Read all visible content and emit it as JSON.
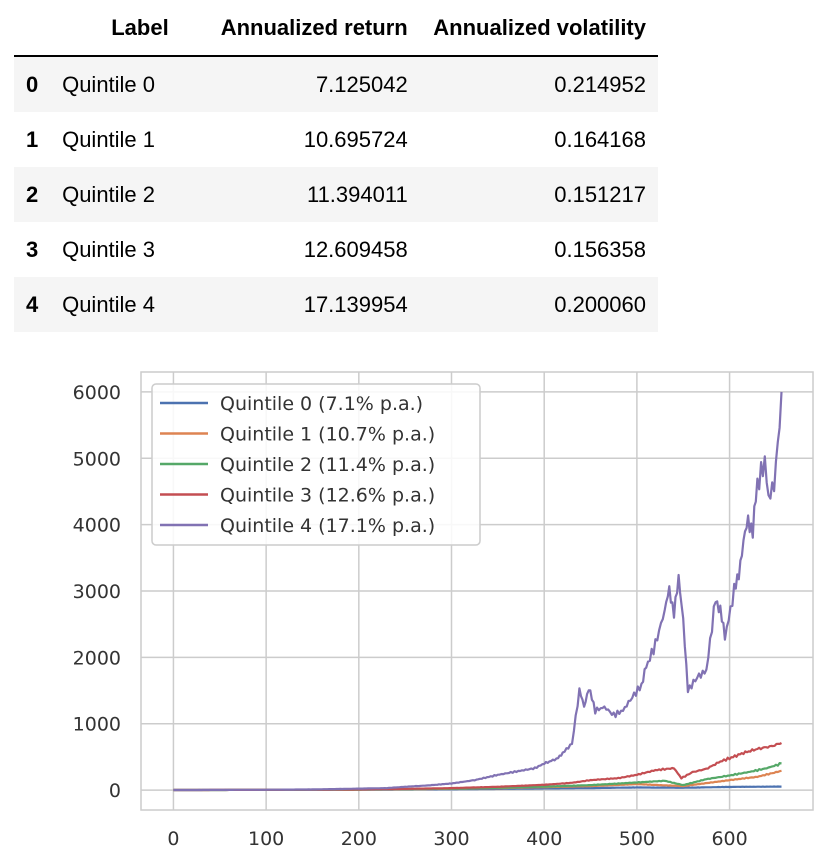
{
  "table": {
    "columns": [
      "Label",
      "Annualized return",
      "Annualized volatility"
    ],
    "rows": [
      {
        "index": "0",
        "label": "Quintile 0",
        "return": "7.125042",
        "volatility": "0.214952"
      },
      {
        "index": "1",
        "label": "Quintile 1",
        "return": "10.695724",
        "volatility": "0.164168"
      },
      {
        "index": "2",
        "label": "Quintile 2",
        "return": "11.394011",
        "volatility": "0.151217"
      },
      {
        "index": "3",
        "label": "Quintile 3",
        "return": "12.609458",
        "volatility": "0.156358"
      },
      {
        "index": "4",
        "label": "Quintile 4",
        "return": "17.139954",
        "volatility": "0.200060"
      }
    ]
  },
  "chart_data": {
    "type": "line",
    "title": "",
    "xlabel": "",
    "ylabel": "",
    "xlim": [
      -35,
      690
    ],
    "ylim": [
      -300,
      6300
    ],
    "xticks": [
      0,
      100,
      200,
      300,
      400,
      500,
      600
    ],
    "yticks": [
      0,
      1000,
      2000,
      3000,
      4000,
      5000,
      6000
    ],
    "grid": true,
    "legend": "top-left",
    "series": [
      {
        "name": "Quintile 0 (7.1% p.a.)",
        "color": "#4c72b0",
        "points": [
          [
            0,
            1
          ],
          [
            100,
            3
          ],
          [
            200,
            6
          ],
          [
            300,
            12
          ],
          [
            350,
            18
          ],
          [
            400,
            25
          ],
          [
            450,
            30
          ],
          [
            500,
            40
          ],
          [
            550,
            35
          ],
          [
            600,
            48
          ],
          [
            656,
            53
          ]
        ]
      },
      {
        "name": "Quintile 1 (10.7% p.a.)",
        "color": "#dd8452",
        "points": [
          [
            0,
            1
          ],
          [
            100,
            3
          ],
          [
            200,
            8
          ],
          [
            250,
            12
          ],
          [
            300,
            20
          ],
          [
            350,
            30
          ],
          [
            400,
            45
          ],
          [
            450,
            60
          ],
          [
            500,
            90
          ],
          [
            550,
            60
          ],
          [
            600,
            150
          ],
          [
            630,
            200
          ],
          [
            656,
            290
          ]
        ]
      },
      {
        "name": "Quintile 2 (11.4% p.a.)",
        "color": "#55a868",
        "points": [
          [
            0,
            1
          ],
          [
            100,
            3
          ],
          [
            200,
            8
          ],
          [
            250,
            14
          ],
          [
            300,
            22
          ],
          [
            350,
            34
          ],
          [
            400,
            52
          ],
          [
            450,
            75
          ],
          [
            500,
            115
          ],
          [
            530,
            140
          ],
          [
            550,
            75
          ],
          [
            575,
            165
          ],
          [
            600,
            220
          ],
          [
            620,
            270
          ],
          [
            640,
            330
          ],
          [
            656,
            400
          ]
        ]
      },
      {
        "name": "Quintile 3 (12.6% p.a.)",
        "color": "#c44e52",
        "points": [
          [
            0,
            1
          ],
          [
            100,
            4
          ],
          [
            200,
            10
          ],
          [
            250,
            18
          ],
          [
            300,
            30
          ],
          [
            350,
            50
          ],
          [
            400,
            80
          ],
          [
            430,
            110
          ],
          [
            450,
            150
          ],
          [
            480,
            180
          ],
          [
            500,
            230
          ],
          [
            520,
            300
          ],
          [
            540,
            330
          ],
          [
            548,
            180
          ],
          [
            560,
            270
          ],
          [
            575,
            320
          ],
          [
            590,
            430
          ],
          [
            600,
            480
          ],
          [
            615,
            560
          ],
          [
            630,
            620
          ],
          [
            645,
            660
          ],
          [
            656,
            710
          ]
        ]
      },
      {
        "name": "Quintile 4 (17.1% p.a.)",
        "color": "#8172b3",
        "points": [
          [
            0,
            1
          ],
          [
            100,
            5
          ],
          [
            150,
            10
          ],
          [
            200,
            22
          ],
          [
            230,
            30
          ],
          [
            250,
            50
          ],
          [
            275,
            70
          ],
          [
            300,
            100
          ],
          [
            325,
            150
          ],
          [
            350,
            230
          ],
          [
            370,
            280
          ],
          [
            390,
            330
          ],
          [
            400,
            400
          ],
          [
            415,
            480
          ],
          [
            420,
            560
          ],
          [
            430,
            700
          ],
          [
            438,
            1500
          ],
          [
            443,
            1250
          ],
          [
            448,
            1550
          ],
          [
            455,
            1200
          ],
          [
            465,
            1250
          ],
          [
            475,
            1130
          ],
          [
            485,
            1200
          ],
          [
            495,
            1400
          ],
          [
            505,
            1580
          ],
          [
            510,
            1850
          ],
          [
            520,
            2200
          ],
          [
            530,
            2700
          ],
          [
            535,
            3000
          ],
          [
            540,
            2700
          ],
          [
            545,
            3150
          ],
          [
            550,
            2600
          ],
          [
            555,
            1500
          ],
          [
            565,
            1700
          ],
          [
            575,
            1800
          ],
          [
            585,
            2900
          ],
          [
            590,
            2700
          ],
          [
            595,
            2300
          ],
          [
            605,
            3000
          ],
          [
            610,
            3300
          ],
          [
            615,
            3700
          ],
          [
            620,
            4100
          ],
          [
            625,
            3900
          ],
          [
            630,
            4600
          ],
          [
            638,
            4950
          ],
          [
            642,
            4400
          ],
          [
            648,
            4600
          ],
          [
            652,
            5200
          ],
          [
            656,
            6000
          ]
        ]
      }
    ]
  }
}
